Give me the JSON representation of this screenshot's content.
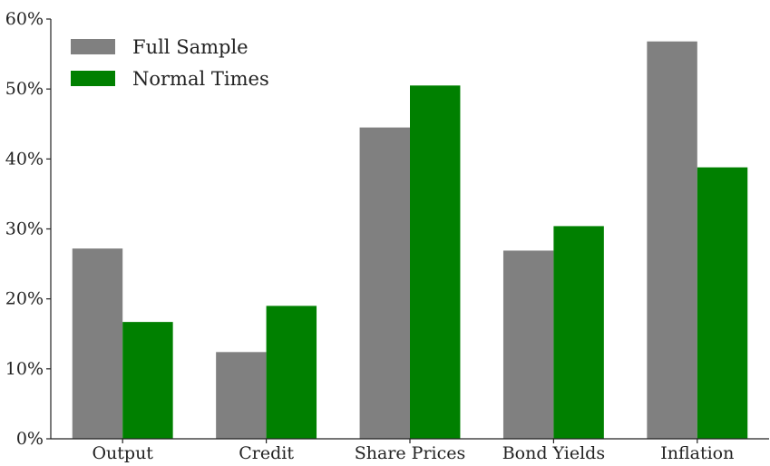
{
  "chart_data": {
    "type": "bar",
    "title": "",
    "xlabel": "",
    "ylabel": "",
    "categories": [
      "Output",
      "Credit",
      "Share Prices",
      "Bond Yields",
      "Inflation"
    ],
    "series": [
      {
        "name": "Full Sample",
        "values": [
          27.2,
          12.4,
          44.5,
          26.9,
          56.8
        ]
      },
      {
        "name": "Normal Times",
        "values": [
          16.7,
          19.0,
          50.5,
          30.4,
          38.8
        ]
      }
    ],
    "ylim": [
      0,
      60
    ],
    "yticks": [
      0,
      10,
      20,
      30,
      40,
      50,
      60
    ],
    "ytick_labels": [
      "0%",
      "10%",
      "20%",
      "30%",
      "40%",
      "50%",
      "60%"
    ],
    "grid": false,
    "legend_position": "top-left",
    "colors": {
      "Full Sample": "#808080",
      "Normal Times": "#008000",
      "axis": "#222222"
    }
  }
}
